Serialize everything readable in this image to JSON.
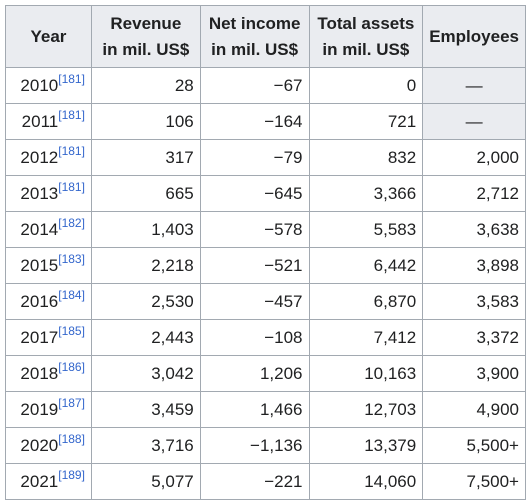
{
  "table": {
    "headers": [
      [
        "Year"
      ],
      [
        "Revenue",
        "in mil. US$"
      ],
      [
        "Net income",
        "in mil. US$"
      ],
      [
        "Total assets",
        "in mil. US$"
      ],
      [
        "Employees"
      ]
    ],
    "rows": [
      {
        "year": "2010",
        "ref": "[181]",
        "revenue": "28",
        "net_income": "−67",
        "total_assets": "0",
        "employees": "—"
      },
      {
        "year": "2011",
        "ref": "[181]",
        "revenue": "106",
        "net_income": "−164",
        "total_assets": "721",
        "employees": "—"
      },
      {
        "year": "2012",
        "ref": "[181]",
        "revenue": "317",
        "net_income": "−79",
        "total_assets": "832",
        "employees": "2,000"
      },
      {
        "year": "2013",
        "ref": "[181]",
        "revenue": "665",
        "net_income": "−645",
        "total_assets": "3,366",
        "employees": "2,712"
      },
      {
        "year": "2014",
        "ref": "[182]",
        "revenue": "1,403",
        "net_income": "−578",
        "total_assets": "5,583",
        "employees": "3,638"
      },
      {
        "year": "2015",
        "ref": "[183]",
        "revenue": "2,218",
        "net_income": "−521",
        "total_assets": "6,442",
        "employees": "3,898"
      },
      {
        "year": "2016",
        "ref": "[184]",
        "revenue": "2,530",
        "net_income": "−457",
        "total_assets": "6,870",
        "employees": "3,583"
      },
      {
        "year": "2017",
        "ref": "[185]",
        "revenue": "2,443",
        "net_income": "−108",
        "total_assets": "7,412",
        "employees": "3,372"
      },
      {
        "year": "2018",
        "ref": "[186]",
        "revenue": "3,042",
        "net_income": "1,206",
        "total_assets": "10,163",
        "employees": "3,900"
      },
      {
        "year": "2019",
        "ref": "[187]",
        "revenue": "3,459",
        "net_income": "1,466",
        "total_assets": "12,703",
        "employees": "4,900"
      },
      {
        "year": "2020",
        "ref": "[188]",
        "revenue": "3,716",
        "net_income": "−1,136",
        "total_assets": "13,379",
        "employees": "5,500+"
      },
      {
        "year": "2021",
        "ref": "[189]",
        "revenue": "5,077",
        "net_income": "−221",
        "total_assets": "14,060",
        "employees": "7,500+"
      }
    ]
  },
  "colors": {
    "header_bg": "#eaecf0",
    "border": "#a2a9b1",
    "link": "#3366cc",
    "text": "#202122"
  }
}
